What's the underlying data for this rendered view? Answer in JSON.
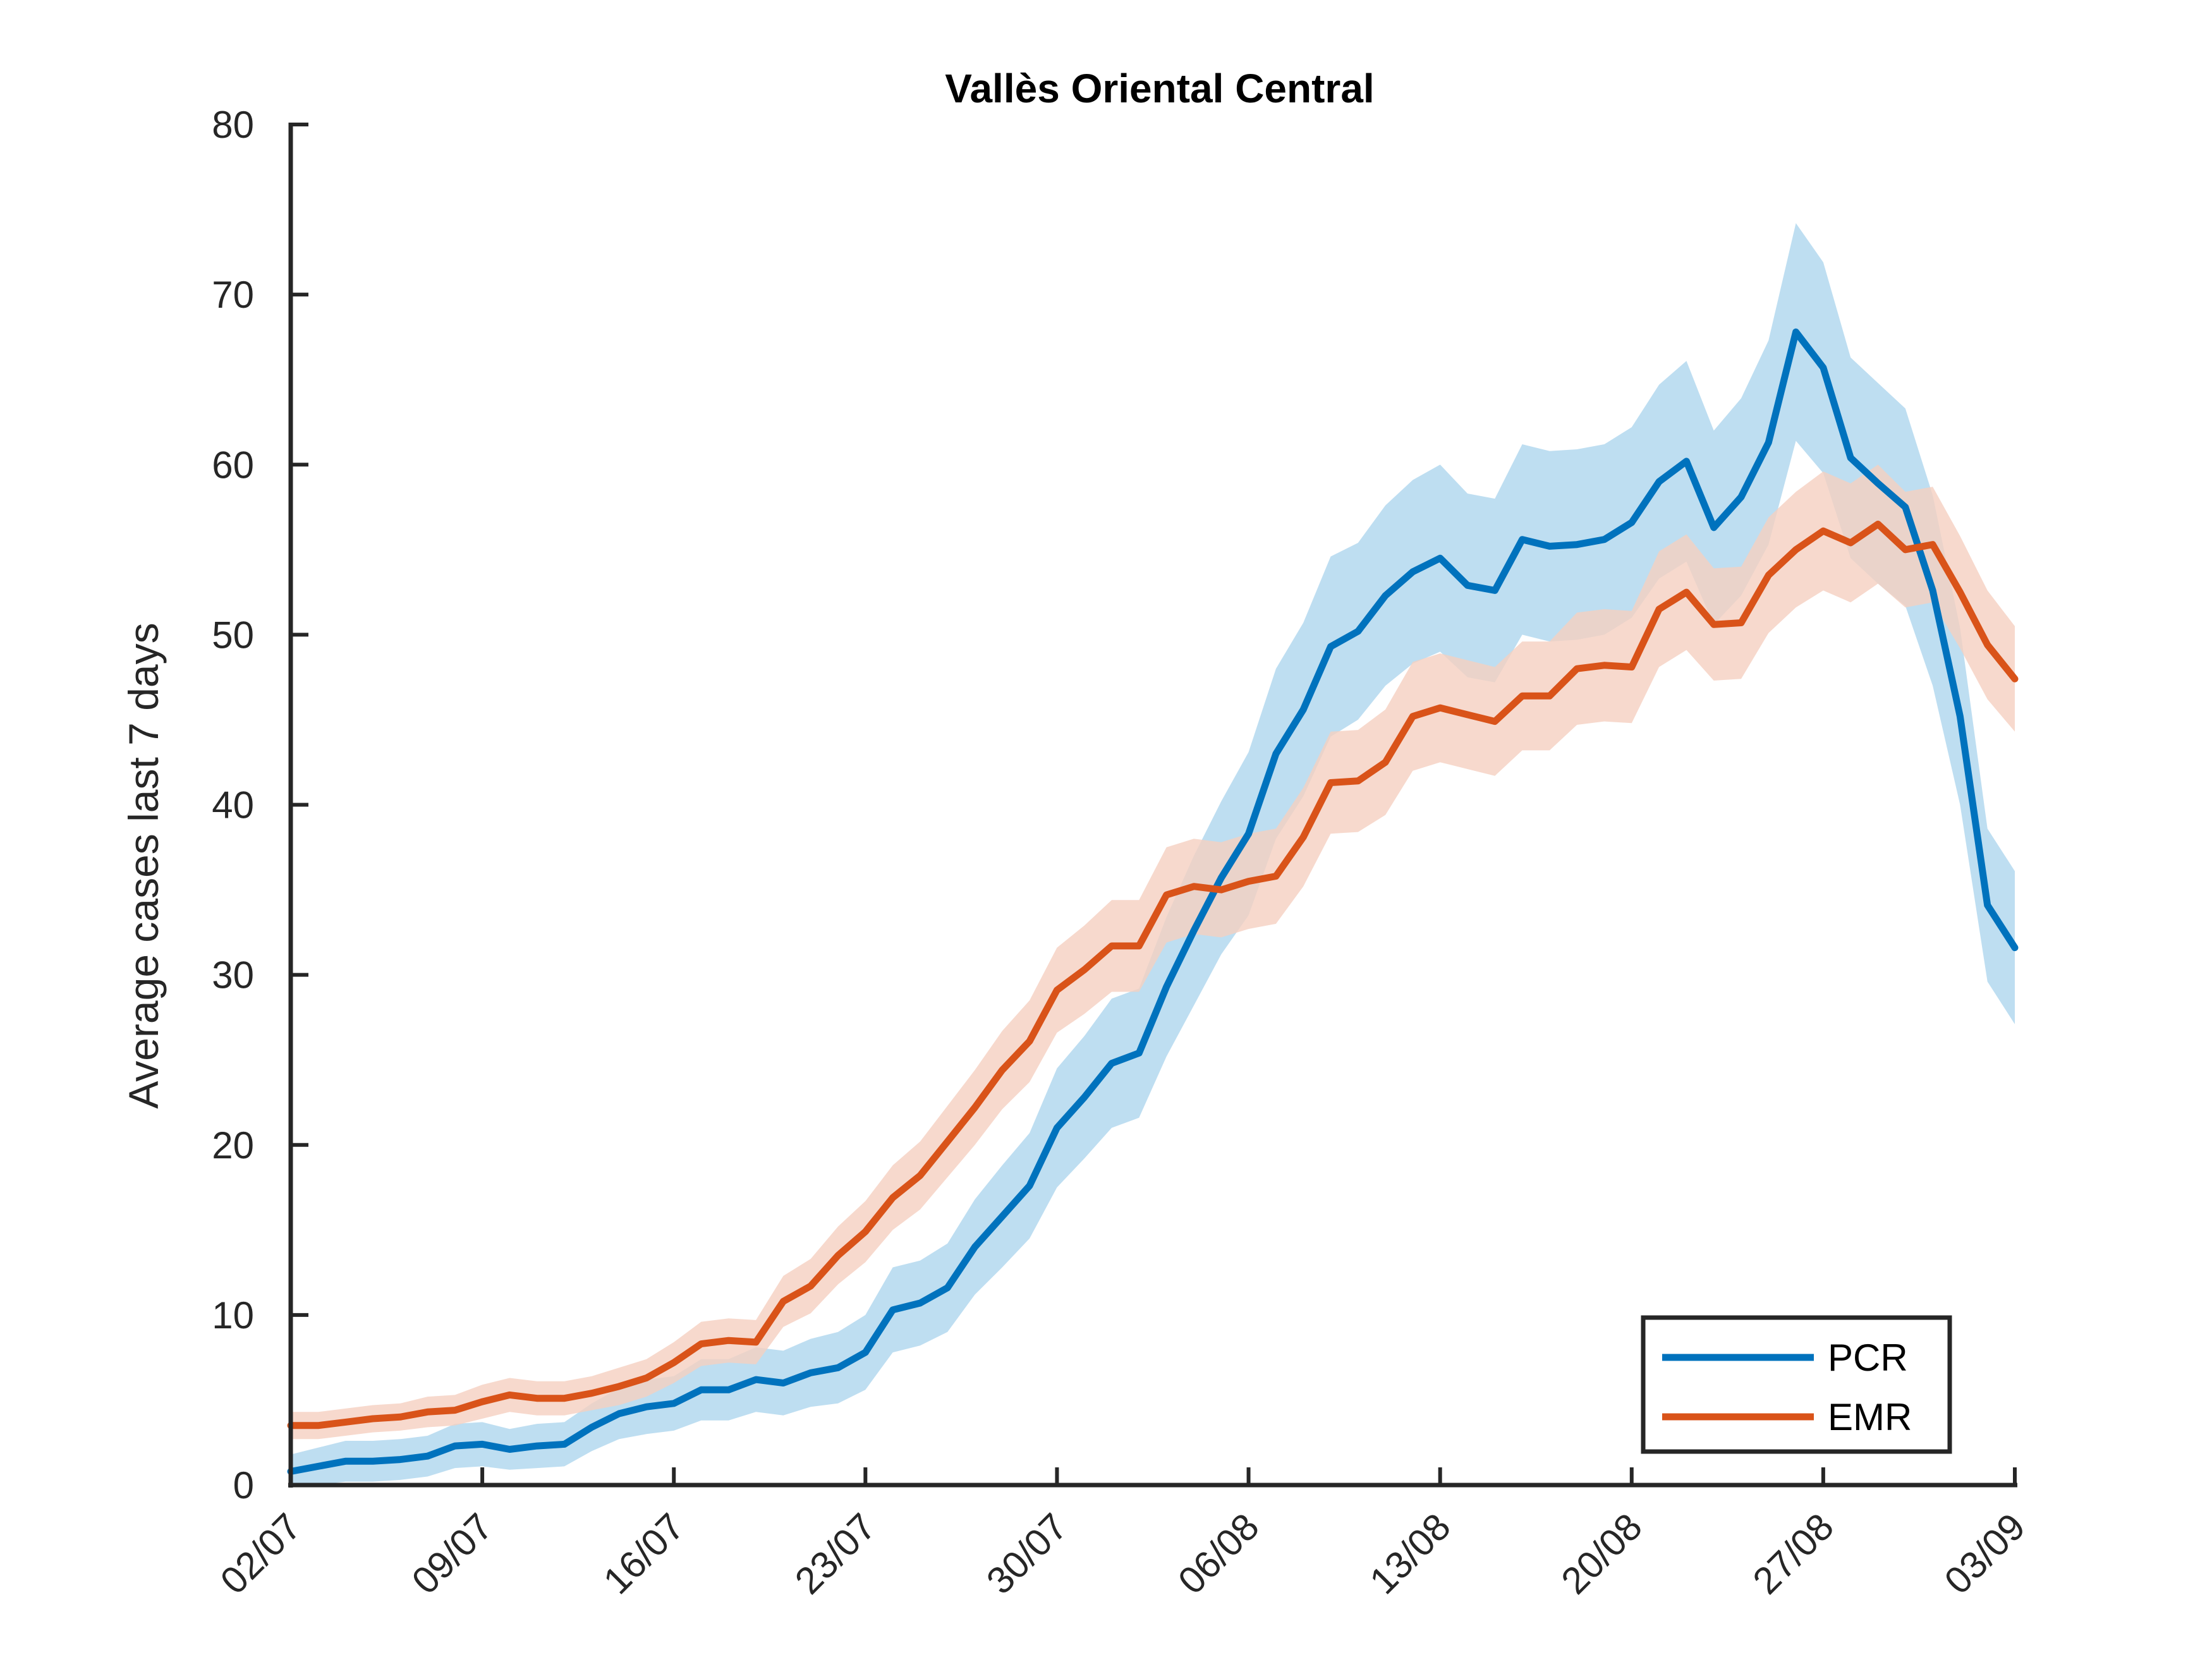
{
  "chart_data": {
    "type": "line",
    "title": "Vallès Oriental Central",
    "xlabel": "",
    "ylabel": "Average cases last 7 days",
    "ylim": [
      0,
      80
    ],
    "yticks": [
      0,
      10,
      20,
      30,
      40,
      50,
      60,
      70,
      80
    ],
    "x_tick_labels": [
      "02/07",
      "09/07",
      "16/07",
      "23/07",
      "30/07",
      "06/08",
      "13/08",
      "20/08",
      "27/08",
      "03/09"
    ],
    "x_start": "02/07",
    "x_end": "03/09",
    "legend_position": "bottom-right",
    "grid": false,
    "series": [
      {
        "name": "PCR",
        "color": "#0072BD",
        "band_color": "#BBDCF0",
        "values": [
          0.8,
          1.1,
          1.4,
          1.4,
          1.5,
          1.7,
          2.3,
          2.4,
          2.1,
          2.3,
          2.4,
          3.4,
          4.2,
          4.6,
          4.8,
          5.6,
          5.6,
          6.2,
          6.0,
          6.6,
          6.9,
          7.8,
          10.3,
          10.7,
          11.6,
          14.0,
          15.8,
          17.6,
          21.0,
          22.8,
          24.8,
          25.4,
          29.3,
          32.6,
          35.7,
          38.3,
          43.0,
          45.6,
          49.3,
          50.2,
          52.3,
          53.7,
          54.5,
          52.9,
          52.6,
          55.6,
          55.2,
          55.3,
          55.6,
          56.6,
          59.0,
          60.2,
          56.3,
          58.1,
          61.3,
          67.8,
          65.7,
          60.4,
          58.9,
          57.5,
          52.6,
          45.2,
          34.1,
          31.6
        ],
        "lower": [
          -0.2,
          0.0,
          0.2,
          0.2,
          0.3,
          0.5,
          1.0,
          1.1,
          0.9,
          1.0,
          1.1,
          2.0,
          2.7,
          3.0,
          3.2,
          3.8,
          3.8,
          4.3,
          4.1,
          4.6,
          4.8,
          5.6,
          7.8,
          8.2,
          9.0,
          11.2,
          12.8,
          14.5,
          17.5,
          19.2,
          21.0,
          21.6,
          25.2,
          28.2,
          31.2,
          33.5,
          38.0,
          40.5,
          44.0,
          45.0,
          47.0,
          48.3,
          49.0,
          47.5,
          47.2,
          50.0,
          49.6,
          49.7,
          50.0,
          51.0,
          53.3,
          54.3,
          50.6,
          52.3,
          55.3,
          61.4,
          59.5,
          54.5,
          53.0,
          51.7,
          47.0,
          40.0,
          29.6,
          27.1
        ],
        "upper": [
          1.8,
          2.2,
          2.6,
          2.6,
          2.7,
          2.9,
          3.6,
          3.7,
          3.3,
          3.6,
          3.7,
          4.8,
          5.7,
          6.2,
          6.4,
          7.4,
          7.4,
          8.1,
          7.9,
          8.6,
          9.0,
          10.0,
          12.8,
          13.2,
          14.2,
          16.8,
          18.8,
          20.7,
          24.5,
          26.4,
          28.6,
          29.2,
          33.4,
          37.0,
          40.2,
          43.1,
          48.0,
          50.7,
          54.6,
          55.4,
          57.6,
          59.1,
          60.0,
          58.3,
          58.0,
          61.2,
          60.8,
          60.9,
          61.2,
          62.2,
          64.7,
          66.1,
          62.0,
          63.9,
          67.3,
          74.2,
          71.9,
          66.3,
          64.8,
          63.3,
          58.2,
          50.4,
          38.6,
          36.1
        ]
      },
      {
        "name": "EMR",
        "color": "#D95319",
        "band_color": "#F5CFC0",
        "values": [
          3.5,
          3.5,
          3.7,
          3.9,
          4.0,
          4.3,
          4.4,
          4.9,
          5.3,
          5.1,
          5.1,
          5.4,
          5.8,
          6.3,
          7.2,
          8.3,
          8.5,
          8.4,
          10.8,
          11.7,
          13.5,
          14.9,
          16.9,
          18.2,
          20.2,
          22.2,
          24.4,
          26.1,
          29.1,
          30.3,
          31.7,
          31.7,
          34.7,
          35.2,
          35.0,
          35.5,
          35.8,
          38.1,
          41.3,
          41.4,
          42.5,
          45.2,
          45.7,
          45.3,
          44.9,
          46.4,
          46.4,
          48.0,
          48.2,
          48.1,
          51.5,
          52.5,
          50.6,
          50.7,
          53.5,
          55.0,
          56.1,
          55.4,
          56.5,
          55.0,
          55.3,
          52.5,
          49.4,
          47.4
        ],
        "lower": [
          2.7,
          2.7,
          2.9,
          3.1,
          3.2,
          3.4,
          3.5,
          3.9,
          4.3,
          4.1,
          4.1,
          4.4,
          4.7,
          5.2,
          6.0,
          7.0,
          7.2,
          7.1,
          9.3,
          10.1,
          11.8,
          13.1,
          15.0,
          16.2,
          18.1,
          20.0,
          22.1,
          23.7,
          26.6,
          27.7,
          29.0,
          29.0,
          31.9,
          32.4,
          32.2,
          32.7,
          33.0,
          35.2,
          38.3,
          38.4,
          39.4,
          42.0,
          42.5,
          42.1,
          41.7,
          43.2,
          43.2,
          44.7,
          44.9,
          44.8,
          48.1,
          49.1,
          47.3,
          47.4,
          50.1,
          51.6,
          52.6,
          51.9,
          53.0,
          51.6,
          51.9,
          49.2,
          46.2,
          44.3
        ],
        "upper": [
          4.3,
          4.3,
          4.5,
          4.7,
          4.8,
          5.2,
          5.3,
          5.9,
          6.3,
          6.1,
          6.1,
          6.4,
          6.9,
          7.4,
          8.4,
          9.6,
          9.8,
          9.7,
          12.3,
          13.3,
          15.2,
          16.7,
          18.8,
          20.2,
          22.3,
          24.4,
          26.7,
          28.5,
          31.6,
          32.9,
          34.4,
          34.4,
          37.5,
          38.0,
          37.8,
          38.3,
          38.6,
          41.0,
          44.3,
          44.4,
          45.6,
          48.4,
          48.9,
          48.5,
          48.1,
          49.6,
          49.6,
          51.3,
          51.5,
          51.4,
          54.9,
          55.9,
          53.9,
          54.0,
          56.9,
          58.4,
          59.6,
          58.9,
          60.0,
          58.4,
          58.7,
          55.8,
          52.6,
          50.5
        ]
      }
    ]
  }
}
